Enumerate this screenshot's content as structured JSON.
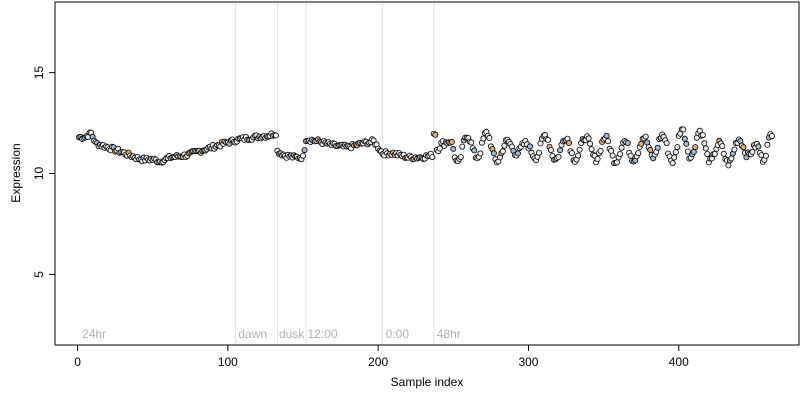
{
  "chart_data": {
    "type": "scatter",
    "title": "",
    "xlabel": "Sample index",
    "ylabel": "Expression",
    "xlim": [
      -15,
      480
    ],
    "ylim": [
      1.5,
      18.5
    ],
    "x_ticks": [
      0,
      100,
      200,
      300,
      400
    ],
    "y_ticks": [
      5,
      10,
      15
    ],
    "grid": false,
    "legend": "none",
    "point_colors": {
      "default": "#eeeeee",
      "blue": "#9fb8d4",
      "orange": "#e8a96a"
    },
    "region_lines": [
      105,
      133,
      152,
      203,
      237
    ],
    "region_labels": [
      {
        "x": 3,
        "text": "24hr"
      },
      {
        "x": 107,
        "text": "dawn"
      },
      {
        "x": 134,
        "text": "dusk"
      },
      {
        "x": 153,
        "text": "12:00"
      },
      {
        "x": 205,
        "text": "0:00"
      },
      {
        "x": 239,
        "text": "48hr"
      }
    ],
    "anchors_first_half": [
      [
        1,
        11.8
      ],
      [
        5,
        11.8
      ],
      [
        9,
        12.0
      ],
      [
        12,
        11.5
      ],
      [
        20,
        11.3
      ],
      [
        28,
        11.1
      ],
      [
        35,
        10.9
      ],
      [
        42,
        10.7
      ],
      [
        50,
        10.7
      ],
      [
        55,
        10.6
      ],
      [
        62,
        10.8
      ],
      [
        72,
        10.9
      ],
      [
        85,
        11.2
      ],
      [
        98,
        11.5
      ],
      [
        108,
        11.7
      ],
      [
        118,
        11.8
      ],
      [
        128,
        11.9
      ],
      [
        132,
        12.0
      ],
      [
        133,
        11.1
      ],
      [
        138,
        10.9
      ],
      [
        145,
        10.8
      ],
      [
        150,
        10.8
      ],
      [
        152,
        11.7
      ],
      [
        160,
        11.6
      ],
      [
        170,
        11.4
      ],
      [
        180,
        11.3
      ],
      [
        190,
        11.5
      ],
      [
        197,
        11.6
      ],
      [
        203,
        11.0
      ],
      [
        210,
        11.0
      ],
      [
        220,
        10.8
      ],
      [
        228,
        10.8
      ],
      [
        236,
        10.9
      ]
    ],
    "wave": {
      "start": 237,
      "end": 462,
      "peaks": [
        [
          239,
          11.2
        ],
        [
          243,
          11.5
        ],
        [
          248,
          11.6
        ],
        [
          253,
          10.5
        ],
        [
          259,
          11.9
        ],
        [
          266,
          10.8
        ],
        [
          272,
          12.0
        ],
        [
          279,
          10.6
        ],
        [
          286,
          11.6
        ],
        [
          292,
          11.0
        ],
        [
          298,
          11.5
        ],
        [
          305,
          10.8
        ],
        [
          311,
          11.9
        ],
        [
          318,
          10.7
        ],
        [
          325,
          11.8
        ],
        [
          331,
          10.7
        ],
        [
          338,
          11.8
        ],
        [
          345,
          10.7
        ],
        [
          351,
          11.8
        ],
        [
          358,
          10.6
        ],
        [
          364,
          11.6
        ],
        [
          370,
          10.7
        ],
        [
          377,
          11.8
        ],
        [
          383,
          10.8
        ],
        [
          389,
          11.9
        ],
        [
          396,
          10.6
        ],
        [
          402,
          12.2
        ],
        [
          408,
          10.8
        ],
        [
          414,
          12.1
        ],
        [
          421,
          10.6
        ],
        [
          427,
          11.5
        ],
        [
          433,
          10.5
        ],
        [
          440,
          11.7
        ],
        [
          446,
          10.9
        ],
        [
          452,
          11.4
        ],
        [
          456,
          10.7
        ],
        [
          462,
          12.0
        ]
      ]
    }
  }
}
